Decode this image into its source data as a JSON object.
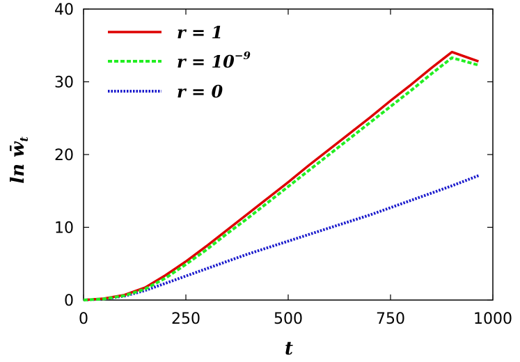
{
  "chart_data": {
    "type": "line",
    "xlabel": "t",
    "ylabel": "ln w̄",
    "ylabel_sub": "t",
    "xlim": [
      0,
      1000
    ],
    "ylim": [
      0,
      40
    ],
    "xticks": [
      0,
      250,
      500,
      750,
      1000
    ],
    "yticks": [
      0,
      10,
      20,
      30,
      40
    ],
    "grid": false,
    "legend_position": "top-left",
    "series": [
      {
        "name": "r = 1",
        "legend_main": "r = 1",
        "legend_sup": "",
        "color": "#dd0000",
        "style": "solid",
        "x": [
          0,
          50,
          100,
          150,
          200,
          250,
          300,
          350,
          400,
          450,
          500,
          550,
          600,
          650,
          700,
          750,
          800,
          850,
          900,
          965
        ],
        "y": [
          0,
          0.2,
          0.7,
          1.7,
          3.4,
          5.3,
          7.4,
          9.6,
          11.8,
          14.0,
          16.2,
          18.5,
          20.7,
          22.9,
          25.1,
          27.4,
          29.6,
          31.9,
          34.1,
          32.8
        ]
      },
      {
        "name": "r = 10^-9",
        "legend_main": "r = 10",
        "legend_sup": "−9",
        "color": "#22ee22",
        "style": "dashed",
        "x": [
          0,
          50,
          100,
          150,
          200,
          250,
          300,
          350,
          400,
          450,
          500,
          550,
          600,
          650,
          700,
          750,
          800,
          850,
          900,
          965
        ],
        "y": [
          0,
          0.15,
          0.6,
          1.5,
          3.0,
          4.9,
          6.9,
          9.1,
          11.2,
          13.4,
          15.6,
          17.8,
          20.0,
          22.2,
          24.4,
          26.6,
          28.8,
          31.1,
          33.3,
          32.3
        ]
      },
      {
        "name": "r = 0",
        "legend_main": "r = 0",
        "legend_sup": "",
        "color": "#1a1acc",
        "style": "dotted",
        "x": [
          0,
          50,
          100,
          150,
          200,
          250,
          300,
          350,
          400,
          450,
          500,
          550,
          600,
          650,
          700,
          750,
          800,
          850,
          900,
          965
        ],
        "y": [
          0,
          0.15,
          0.55,
          1.3,
          2.3,
          3.3,
          4.3,
          5.3,
          6.3,
          7.2,
          8.1,
          9.0,
          9.9,
          10.8,
          11.7,
          12.7,
          13.7,
          14.7,
          15.7,
          17.1
        ]
      }
    ]
  }
}
